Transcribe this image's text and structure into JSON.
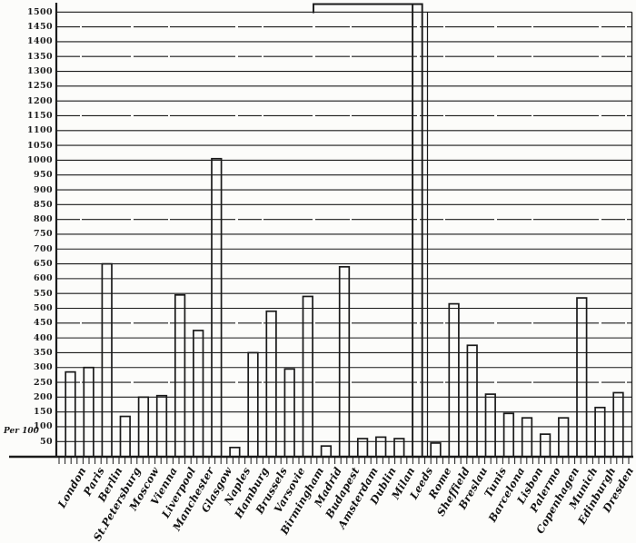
{
  "chart_data": {
    "type": "bar",
    "title": "",
    "xlabel": "",
    "ylabel": "Per 100",
    "ylim": [
      0,
      1500
    ],
    "ytick_step": 50,
    "grid": true,
    "legend": false,
    "bar_style": "outlined-transparent",
    "ink_color": "#1a1a1a",
    "background_color": "#fcfcfa",
    "categories": [
      "London",
      "Paris",
      "Berlin",
      "St.Petersburg",
      "Moscow",
      "Vienna",
      "Liverpool",
      "Manchester",
      "Glasgow",
      "Naples",
      "Hamburg",
      "Brussels",
      "Varsovie",
      "Birmingham",
      "Madrid",
      "Budapest",
      "Amsterdam",
      "Dublin",
      "Milan",
      "Leeds",
      "Rome",
      "Sheffield",
      "Breslau",
      "Tunis",
      "Barcelona",
      "Lisbon",
      "Palermo",
      "Copenhagen",
      "Munich",
      "Edinburgh",
      "Dresden"
    ],
    "values": [
      285,
      300,
      650,
      135,
      200,
      205,
      545,
      425,
      1005,
      30,
      350,
      490,
      295,
      540,
      35,
      640,
      60,
      65,
      60,
      null,
      45,
      515,
      375,
      210,
      145,
      130,
      75,
      130,
      535,
      165,
      215
    ],
    "off_scale": {
      "index": 19,
      "category": "Leeds",
      "note": "bar exceeds top of scale (>1500), drawn with capped flag above chart frame"
    }
  }
}
